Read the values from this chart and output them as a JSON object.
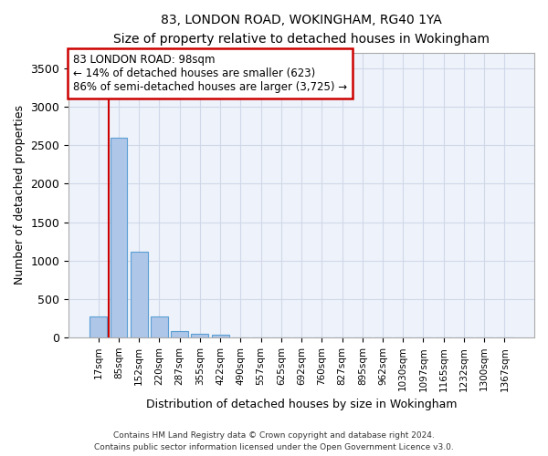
{
  "title_line1": "83, LONDON ROAD, WOKINGHAM, RG40 1YA",
  "title_line2": "Size of property relative to detached houses in Wokingham",
  "xlabel": "Distribution of detached houses by size in Wokingham",
  "ylabel": "Number of detached properties",
  "footer_line1": "Contains HM Land Registry data © Crown copyright and database right 2024.",
  "footer_line2": "Contains public sector information licensed under the Open Government Licence v3.0.",
  "bar_labels": [
    "17sqm",
    "85sqm",
    "152sqm",
    "220sqm",
    "287sqm",
    "355sqm",
    "422sqm",
    "490sqm",
    "557sqm",
    "625sqm",
    "692sqm",
    "760sqm",
    "827sqm",
    "895sqm",
    "962sqm",
    "1030sqm",
    "1097sqm",
    "1165sqm",
    "1232sqm",
    "1300sqm",
    "1367sqm"
  ],
  "bar_values": [
    270,
    2600,
    1120,
    280,
    90,
    50,
    40,
    0,
    0,
    0,
    0,
    0,
    0,
    0,
    0,
    0,
    0,
    0,
    0,
    0,
    0
  ],
  "bar_color": "#aec6e8",
  "bar_edge_color": "#5a9fd4",
  "grid_color": "#d0d8e8",
  "background_color": "#eef2fa",
  "vline_x": 0.5,
  "vline_color": "#cc0000",
  "annotation_line1": "83 LONDON ROAD: 98sqm",
  "annotation_line2": "← 14% of detached houses are smaller (623)",
  "annotation_line3": "86% of semi-detached houses are larger (3,725) →",
  "annotation_box_edge": "#cc0000",
  "ylim": [
    0,
    3700
  ],
  "yticks": [
    0,
    500,
    1000,
    1500,
    2000,
    2500,
    3000,
    3500
  ]
}
